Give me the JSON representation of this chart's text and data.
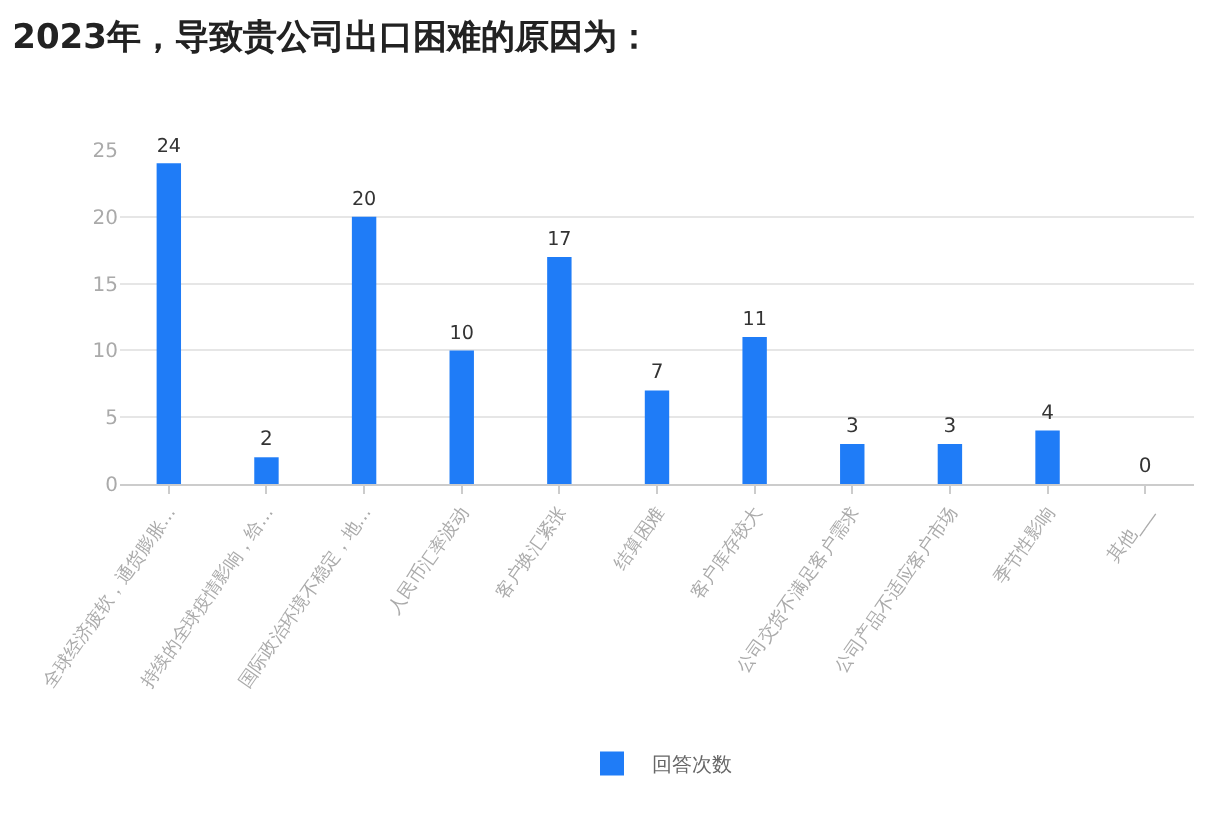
{
  "chart_data": {
    "type": "bar",
    "title": "2023年，导致贵公司出口困难的原因为：",
    "categories": [
      "全球经济疲软，通货膨胀…",
      "持续的全球疫情影响，给…",
      "国际政治环境不稳定，地…",
      "人民币汇率波动",
      "客户换汇紧张",
      "结算困难",
      "客户库存较大",
      "公司交货不满足客户需求",
      "公司产品不适应客户市场",
      "季节性影响",
      "其他___"
    ],
    "series": [
      {
        "name": "回答次数",
        "color": "#1f7cf7",
        "values": [
          24,
          2,
          20,
          10,
          17,
          7,
          11,
          3,
          3,
          4,
          0
        ]
      }
    ],
    "ylim": [
      0,
      25
    ],
    "yticks": [
      0,
      5,
      10,
      15,
      20,
      25
    ],
    "grid": "y",
    "data_labels": true,
    "legend": "bottom"
  }
}
